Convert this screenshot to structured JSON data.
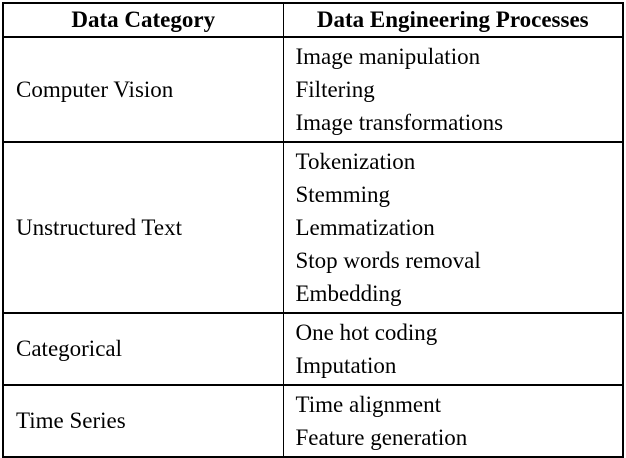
{
  "table": {
    "headers": [
      "Data Category",
      "Data Engineering Processes"
    ],
    "rows": [
      {
        "category": "Computer Vision",
        "processes": [
          "Image manipulation",
          "Filtering",
          "Image transformations"
        ]
      },
      {
        "category": "Unstructured Text",
        "processes": [
          "Tokenization",
          "Stemming",
          "Lemmatization",
          "Stop words removal",
          "Embedding"
        ]
      },
      {
        "category": "Categorical",
        "processes": [
          "One hot coding",
          "Imputation"
        ]
      },
      {
        "category": "Time Series",
        "processes": [
          "Time alignment",
          "Feature generation"
        ]
      }
    ]
  }
}
